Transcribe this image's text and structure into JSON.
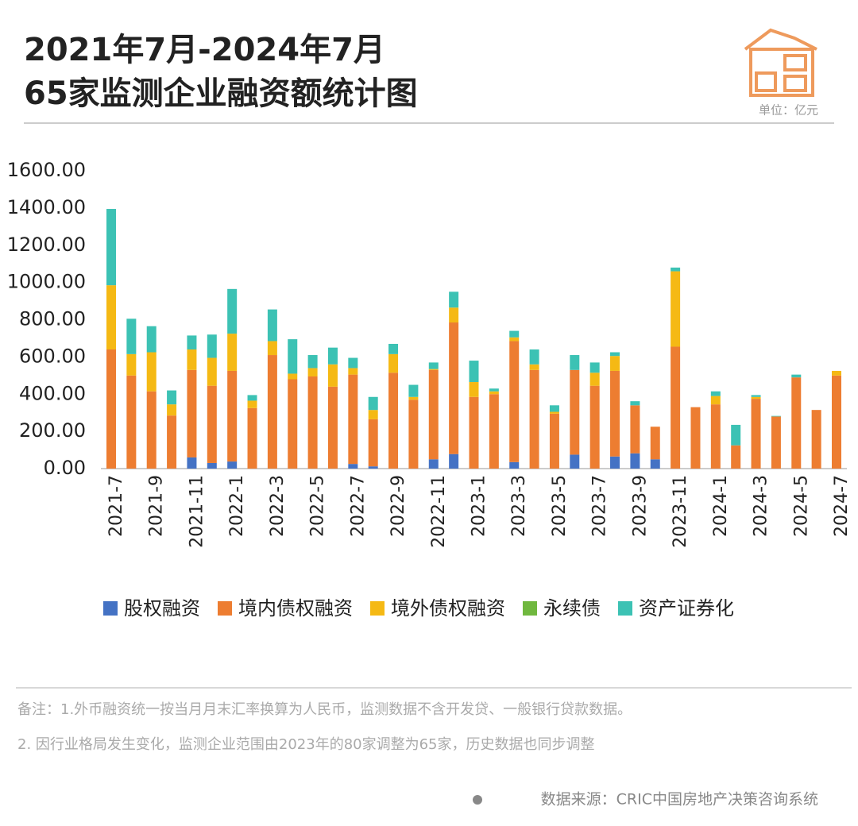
{
  "chart_data": {
    "type": "stacked-bar",
    "title": "2021年7月-2024年7月",
    "subtitle": "65家监测企业融资额统计图",
    "unit": "单位：亿元",
    "categories": [
      "2021-7",
      null,
      "2021-9",
      null,
      "2021-11",
      null,
      "2022-1",
      null,
      "2022-3",
      null,
      "2022-5",
      null,
      "2022-7",
      null,
      "2022-9",
      null,
      "2022-11",
      null,
      "2023-1",
      null,
      "2023-3",
      null,
      "2023-5",
      null,
      "2023-7",
      null,
      "2023-9",
      null,
      "2023-11",
      null,
      "2024-1",
      null,
      "2024-3",
      null,
      "2024-5",
      null,
      "2024-7"
    ],
    "series": [
      {
        "name": "股权融资",
        "color": "#4472c4",
        "values": [
          0,
          0,
          0,
          0,
          60,
          30,
          38,
          0,
          0,
          0,
          0,
          0,
          25,
          12,
          0,
          0,
          50,
          78,
          0,
          0,
          35,
          0,
          0,
          75,
          0,
          65,
          82,
          50,
          0,
          0,
          0,
          0,
          0,
          0,
          0,
          0,
          0
        ]
      },
      {
        "name": "境内债权融资",
        "color": "#ed7d31",
        "values": [
          640,
          500,
          415,
          285,
          470,
          415,
          487,
          325,
          610,
          480,
          495,
          440,
          480,
          253,
          515,
          370,
          480,
          707,
          385,
          400,
          650,
          530,
          295,
          455,
          445,
          460,
          258,
          175,
          655,
          330,
          345,
          125,
          375,
          280,
          490,
          315,
          500
        ]
      },
      {
        "name": "境外债权融资",
        "color": "#f5b914",
        "values": [
          345,
          115,
          210,
          60,
          110,
          150,
          200,
          40,
          75,
          30,
          45,
          120,
          35,
          50,
          100,
          15,
          5,
          80,
          80,
          15,
          20,
          30,
          10,
          0,
          70,
          80,
          0,
          0,
          405,
          0,
          45,
          0,
          10,
          0,
          0,
          0,
          25
        ]
      },
      {
        "name": "永续债",
        "color": "#70b83f",
        "values": [
          0,
          0,
          0,
          0,
          0,
          0,
          0,
          0,
          0,
          0,
          0,
          0,
          0,
          0,
          0,
          0,
          0,
          0,
          0,
          0,
          0,
          0,
          0,
          0,
          0,
          0,
          0,
          0,
          0,
          0,
          0,
          0,
          0,
          0,
          0,
          0,
          0
        ]
      },
      {
        "name": "资产证券化",
        "color": "#3cc2b4",
        "values": [
          410,
          190,
          140,
          75,
          75,
          125,
          240,
          30,
          170,
          185,
          70,
          90,
          55,
          70,
          55,
          65,
          35,
          85,
          115,
          15,
          35,
          80,
          35,
          80,
          55,
          20,
          22,
          0,
          20,
          0,
          25,
          110,
          10,
          3,
          15,
          0,
          0
        ]
      }
    ],
    "ylim": [
      0,
      1600
    ],
    "yticks": [
      {
        "value": 0,
        "label": "0.00"
      },
      {
        "value": 200,
        "label": "200.00"
      },
      {
        "value": 400,
        "label": "400.00"
      },
      {
        "value": 600,
        "label": "600.00"
      },
      {
        "value": 800,
        "label": "800.00"
      },
      {
        "value": 1000,
        "label": "1000.00"
      },
      {
        "value": 1200,
        "label": "1200.00"
      },
      {
        "value": 1400,
        "label": "1400.00"
      },
      {
        "value": 1600,
        "label": "1600.00"
      }
    ]
  },
  "footer": {
    "notes": [
      "备注：1.外币融资统一按当月月末汇率换算为人民币，监测数据不含开发贷、一般银行贷款数据。",
      "2. 因行业格局发生变化，监测企业范围由2023年的80家调整为65家，历史数据也同步调整"
    ],
    "source": "数据来源：CRIC中国房地产决策咨询系统"
  }
}
